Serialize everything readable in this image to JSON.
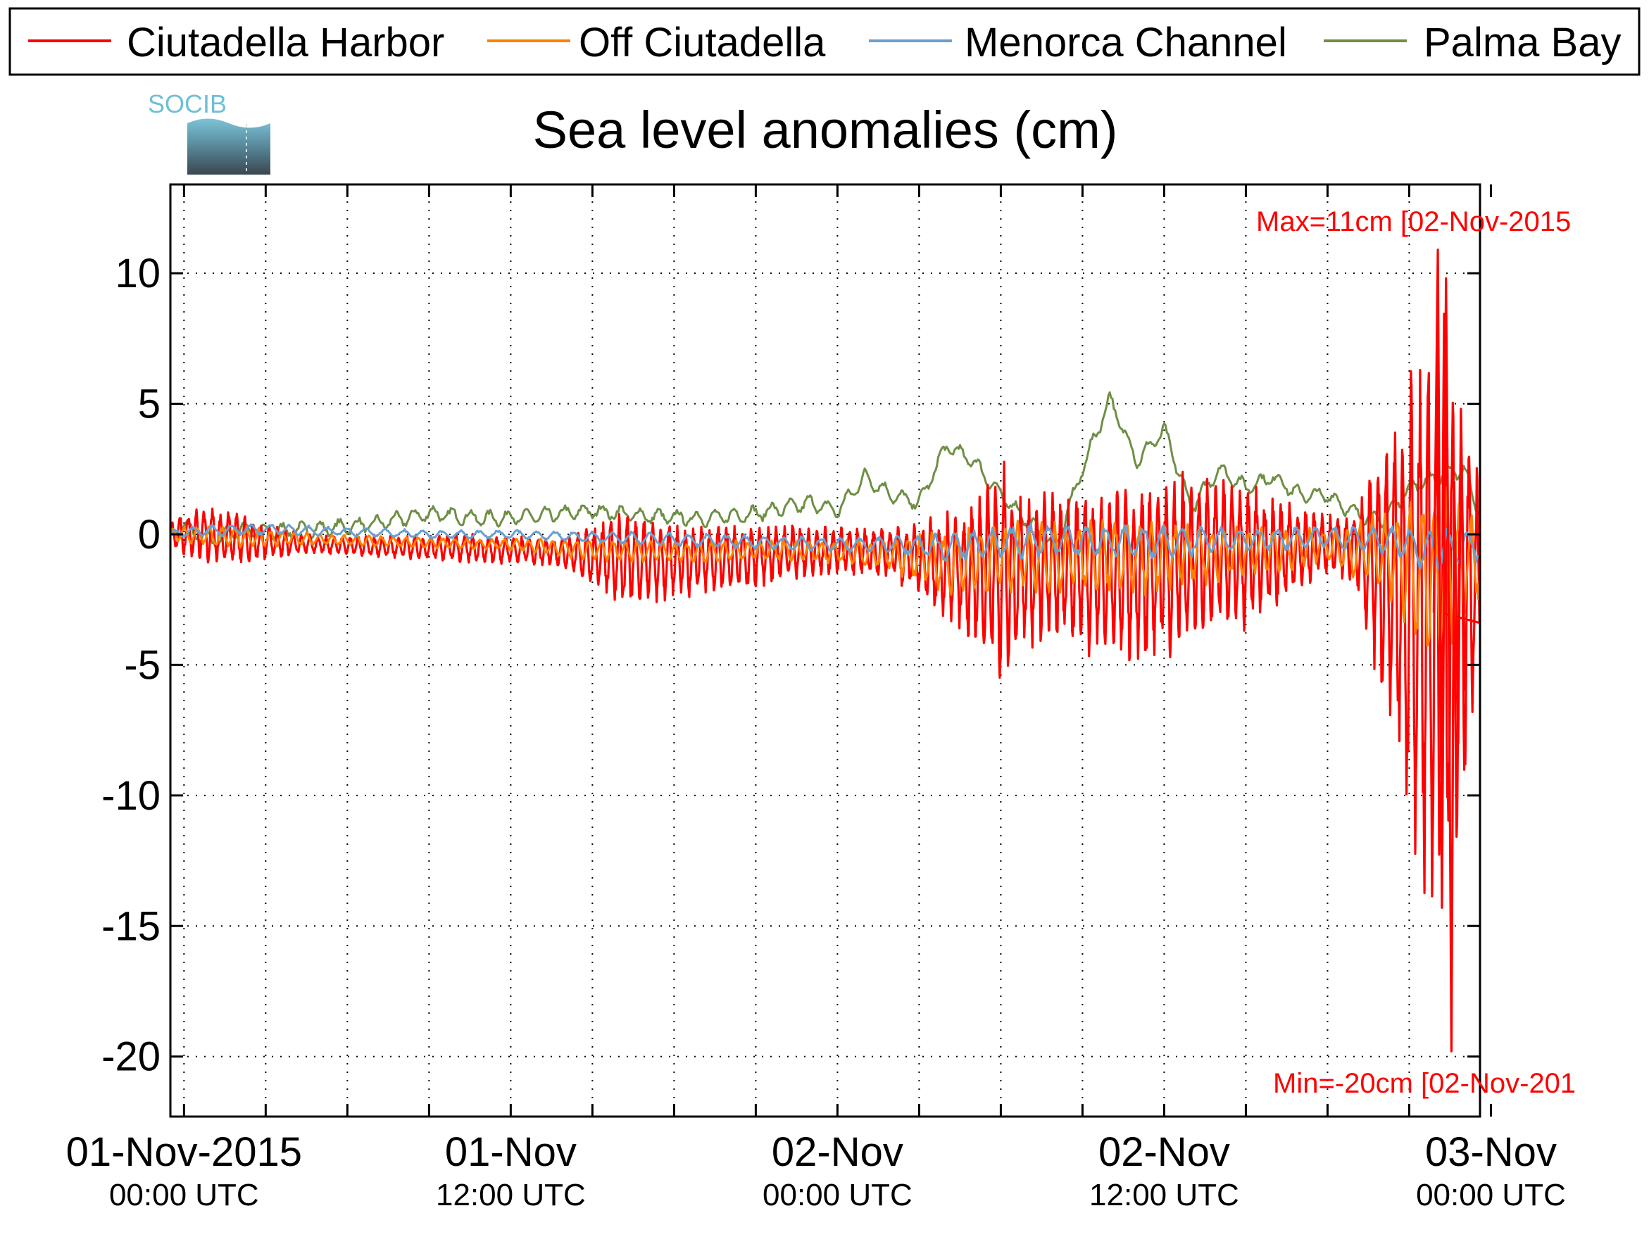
{
  "logo_text": "SOCIB",
  "chart_data": {
    "type": "line",
    "title": "Sea level anomalies (cm)",
    "ylim": [
      -22.3,
      13.4
    ],
    "yticks": [
      10,
      5,
      0,
      -5,
      -10,
      -15,
      -20
    ],
    "ytick_labels": [
      "10",
      "5",
      "0",
      "-5",
      "-10",
      "-15",
      "-20"
    ],
    "xlim": [
      -0.5,
      47.6
    ],
    "xticks": [
      {
        "hour": 0,
        "line1": "01-Nov-2015",
        "line2": "00:00 UTC"
      },
      {
        "hour": 12,
        "line1": "01-Nov",
        "line2": "12:00 UTC"
      },
      {
        "hour": 24,
        "line1": "02-Nov",
        "line2": "00:00 UTC"
      },
      {
        "hour": 36,
        "line1": "02-Nov",
        "line2": "12:00 UTC"
      },
      {
        "hour": 48,
        "line1": "03-Nov",
        "line2": "00:00 UTC"
      }
    ],
    "minor_tick_hours": [
      3,
      6,
      9,
      15,
      18,
      21,
      27,
      30,
      33,
      39,
      42,
      45
    ],
    "grid": true,
    "legend_position": "top",
    "series": [
      {
        "name": "Ciutadella Harbor",
        "color": "#ff0000",
        "x_hours": [
          -0.5,
          0,
          1,
          2,
          3,
          5,
          8,
          10,
          12,
          14,
          15,
          16,
          17,
          18,
          20,
          22,
          24,
          26,
          28,
          29,
          30,
          31,
          32,
          33,
          34,
          35,
          36,
          37,
          38,
          39,
          40,
          41,
          42,
          43,
          44,
          44.5,
          45,
          45.5,
          46,
          46.3,
          46.7,
          47,
          47.3,
          47.6
        ],
        "amplitude": [
          0.4,
          0.8,
          1.0,
          0.9,
          0.6,
          0.3,
          0.4,
          0.5,
          0.5,
          0.5,
          1.2,
          1.6,
          1.5,
          1.3,
          1.2,
          1.0,
          0.8,
          0.9,
          1.8,
          2.5,
          4.0,
          3.0,
          2.5,
          2.8,
          3.0,
          3.2,
          3.2,
          3.0,
          2.8,
          2.5,
          2.0,
          1.5,
          1.0,
          1.2,
          4.5,
          6.0,
          8.0,
          10.0,
          12.0,
          11.0,
          9.0,
          7.0,
          5.0,
          4.0
        ],
        "baseline": [
          0,
          0,
          0,
          -0.2,
          -0.3,
          -0.4,
          -0.5,
          -0.5,
          -0.6,
          -0.7,
          -0.9,
          -1.0,
          -1.0,
          -1.0,
          -0.9,
          -0.7,
          -0.6,
          -0.7,
          -1.2,
          -1.5,
          -1.5,
          -1.3,
          -1.2,
          -1.4,
          -1.6,
          -1.5,
          -1.2,
          -1.0,
          -0.9,
          -0.8,
          -0.7,
          -0.6,
          -0.4,
          -0.5,
          -1.5,
          -2.0,
          -2.5,
          -3.0,
          -4.0,
          -3.5,
          -3.0,
          -2.5,
          -2.0,
          -2.0
        ],
        "period_hours": 0.3
      },
      {
        "name": "Off Ciutadella",
        "color": "#ff8000",
        "x_hours": [
          -0.5,
          0,
          2,
          5,
          8,
          12,
          15,
          18,
          22,
          24,
          26,
          28,
          30,
          32,
          34,
          36,
          38,
          40,
          42,
          44,
          45,
          46,
          47,
          47.6
        ],
        "amplitude": [
          0.2,
          0.3,
          0.4,
          0.2,
          0.2,
          0.2,
          0.4,
          0.4,
          0.4,
          0.4,
          0.6,
          1.2,
          1.3,
          1.3,
          1.3,
          1.3,
          1.0,
          0.8,
          0.6,
          1.5,
          2.5,
          3.5,
          2.0,
          1.5
        ],
        "baseline": [
          0,
          0,
          -0.1,
          -0.2,
          -0.3,
          -0.4,
          -0.6,
          -0.7,
          -0.6,
          -0.7,
          -0.8,
          -1.1,
          -1.0,
          -0.9,
          -0.9,
          -0.8,
          -0.7,
          -0.6,
          -0.4,
          -0.8,
          -1.2,
          -1.5,
          -1.0,
          -1.0
        ],
        "period_hours": 0.45
      },
      {
        "name": "Menorca Channel",
        "color": "#6aa0d0",
        "x_hours": [
          -0.5,
          0,
          3,
          6,
          9,
          12,
          15,
          18,
          21,
          24,
          26,
          28,
          30,
          32,
          34,
          36,
          38,
          40,
          42,
          44,
          45,
          46,
          47,
          47.6
        ],
        "amplitude": [
          0.1,
          0.2,
          0.2,
          0.15,
          0.15,
          0.15,
          0.2,
          0.25,
          0.25,
          0.25,
          0.3,
          0.5,
          0.6,
          0.6,
          0.6,
          0.6,
          0.5,
          0.4,
          0.4,
          0.5,
          0.7,
          0.8,
          0.7,
          0.6
        ],
        "baseline": [
          0,
          0.1,
          0.2,
          0.1,
          0,
          0,
          -0.1,
          -0.2,
          -0.3,
          -0.4,
          -0.4,
          -0.5,
          -0.3,
          -0.2,
          -0.3,
          -0.3,
          -0.2,
          -0.2,
          -0.1,
          -0.2,
          -0.4,
          -0.6,
          -0.5,
          -0.4
        ],
        "period_hours": 0.7
      },
      {
        "name": "Palma Bay",
        "color": "#6f8f45",
        "x_hours": [
          -0.5,
          0,
          1,
          2,
          3,
          5,
          7,
          9,
          11,
          13,
          15,
          17,
          19,
          21,
          23,
          24,
          25,
          26,
          27,
          28,
          29,
          30,
          31,
          32,
          33,
          34,
          35,
          36,
          37,
          38,
          39,
          40,
          41,
          42,
          43,
          44,
          45,
          46,
          47,
          47.6
        ],
        "values": [
          0,
          0.3,
          -0.3,
          0.2,
          0.1,
          0.2,
          0.4,
          0.8,
          0.6,
          0.7,
          0.9,
          0.7,
          0.6,
          0.8,
          1.2,
          0.9,
          2.2,
          1.5,
          1.2,
          3.4,
          2.8,
          1.5,
          0.5,
          -0.5,
          2.5,
          5.2,
          2.8,
          4.0,
          1.0,
          2.5,
          1.8,
          2.2,
          1.5,
          1.5,
          0.8,
          0.5,
          1.8,
          2.2,
          2.5,
          0.8
        ]
      }
    ],
    "annotations": [
      {
        "text": "Max=11cm [02-Nov-2015",
        "color": "#ff0000"
      },
      {
        "text": "Min=-20cm [02-Nov-201",
        "color": "#ff0000"
      }
    ]
  }
}
